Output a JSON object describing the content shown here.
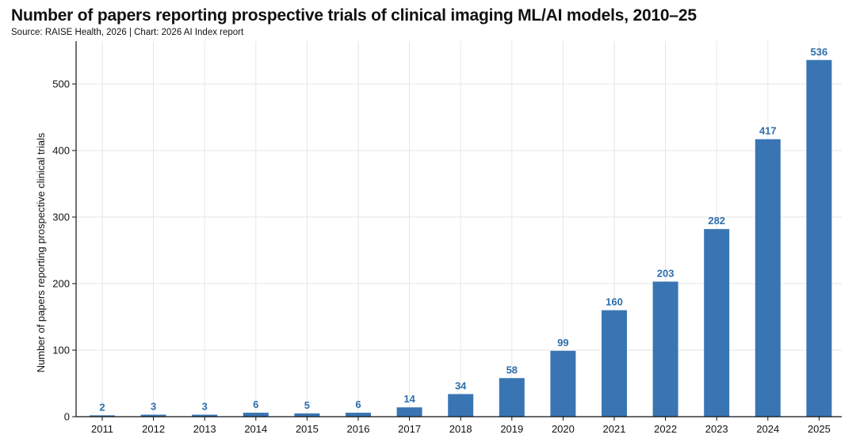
{
  "title": "Number of papers reporting prospective trials of clinical imaging ML/AI models, 2010–25",
  "source": "Source: RAISE Health, 2026 | Chart: 2026 AI Index report",
  "colors": {
    "bar": "#3a75b3",
    "value_label": "#2e6fad",
    "grid": "#e6e6e6",
    "axis": "#111111"
  },
  "chart_data": {
    "type": "bar",
    "categories": [
      "2011",
      "2012",
      "2013",
      "2014",
      "2015",
      "2016",
      "2017",
      "2018",
      "2019",
      "2020",
      "2021",
      "2022",
      "2023",
      "2024",
      "2025"
    ],
    "values": [
      2,
      3,
      3,
      6,
      5,
      6,
      14,
      34,
      58,
      99,
      160,
      203,
      282,
      417,
      536
    ],
    "value_labels": [
      "2",
      "3",
      "3",
      "6",
      "5",
      "6",
      "14",
      "34",
      "58",
      "99",
      "160",
      "203",
      "282",
      "417",
      "536"
    ],
    "ylabel": "Number of papers reporting prospective clinical trials",
    "xlabel": "",
    "ylim": [
      0,
      560
    ],
    "yticks": [
      0,
      100,
      200,
      300,
      400,
      500
    ],
    "grid": true
  }
}
